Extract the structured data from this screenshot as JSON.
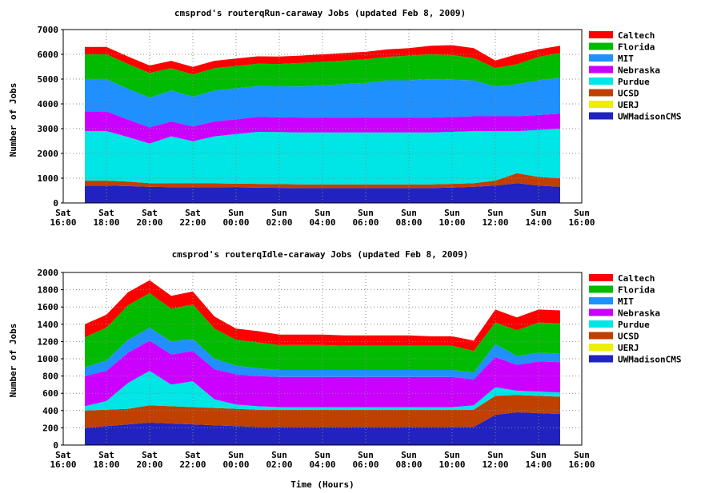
{
  "xlabel": "Time (Hours)",
  "ylabel": "Number of Jobs",
  "x_ticks": [
    {
      "day": "Sat",
      "time": "16:00"
    },
    {
      "day": "Sat",
      "time": "18:00"
    },
    {
      "day": "Sat",
      "time": "20:00"
    },
    {
      "day": "Sat",
      "time": "22:00"
    },
    {
      "day": "Sun",
      "time": "00:00"
    },
    {
      "day": "Sun",
      "time": "02:00"
    },
    {
      "day": "Sun",
      "time": "04:00"
    },
    {
      "day": "Sun",
      "time": "06:00"
    },
    {
      "day": "Sun",
      "time": "08:00"
    },
    {
      "day": "Sun",
      "time": "10:00"
    },
    {
      "day": "Sun",
      "time": "12:00"
    },
    {
      "day": "Sun",
      "time": "14:00"
    },
    {
      "day": "Sun",
      "time": "16:00"
    }
  ],
  "series_colors": {
    "Caltech": "#ff0000",
    "Florida": "#00bb00",
    "MIT": "#1e90ff",
    "Nebraska": "#cc00ff",
    "Purdue": "#00e5e5",
    "UCSD": "#c04000",
    "UERJ": "#eeee00",
    "UWMadisonCMS": "#2222c0"
  },
  "chart_data": [
    {
      "type": "area",
      "stacked": true,
      "title": "cmsprod's routerqRun-caraway Jobs (updated Feb 8, 2009)",
      "xlabel": "",
      "ylabel": "Number of Jobs",
      "ylim": [
        0,
        7000
      ],
      "y_ticks": [
        0,
        1000,
        2000,
        3000,
        4000,
        5000,
        6000,
        7000
      ],
      "grid": true,
      "legend": "right",
      "x_hours": [
        17,
        18,
        19,
        20,
        21,
        22,
        23,
        24,
        25,
        26,
        27,
        28,
        29,
        30,
        31,
        32,
        33,
        34,
        35,
        36,
        37,
        38,
        39
      ],
      "series": [
        {
          "name": "UWMadisonCMS",
          "values": [
            700,
            700,
            680,
            650,
            640,
            640,
            640,
            630,
            620,
            610,
            600,
            600,
            600,
            600,
            600,
            600,
            600,
            620,
            650,
            700,
            800,
            700,
            650
          ]
        },
        {
          "name": "UERJ",
          "values": [
            0,
            0,
            0,
            0,
            0,
            0,
            0,
            0,
            0,
            0,
            0,
            0,
            0,
            0,
            0,
            0,
            0,
            0,
            0,
            0,
            0,
            0,
            0
          ]
        },
        {
          "name": "UCSD",
          "values": [
            200,
            200,
            180,
            150,
            150,
            150,
            150,
            150,
            150,
            150,
            150,
            150,
            150,
            150,
            150,
            150,
            150,
            150,
            150,
            200,
            400,
            350,
            350
          ]
        },
        {
          "name": "Purdue",
          "values": [
            2000,
            2000,
            1800,
            1600,
            1900,
            1700,
            1900,
            2000,
            2100,
            2100,
            2100,
            2100,
            2100,
            2100,
            2100,
            2100,
            2100,
            2100,
            2100,
            2000,
            1700,
            1900,
            2000
          ]
        },
        {
          "name": "Nebraska",
          "values": [
            800,
            800,
            700,
            650,
            600,
            600,
            600,
            600,
            600,
            600,
            600,
            600,
            600,
            600,
            600,
            600,
            600,
            600,
            600,
            600,
            600,
            600,
            600
          ]
        },
        {
          "name": "MIT",
          "values": [
            1300,
            1300,
            1250,
            1200,
            1250,
            1200,
            1250,
            1250,
            1250,
            1250,
            1250,
            1300,
            1350,
            1400,
            1500,
            1500,
            1550,
            1500,
            1450,
            1200,
            1300,
            1400,
            1450
          ]
        },
        {
          "name": "Florida",
          "values": [
            1000,
            1000,
            1000,
            1000,
            900,
            900,
            900,
            900,
            900,
            900,
            950,
            950,
            950,
            950,
            950,
            1000,
            1000,
            1000,
            900,
            750,
            800,
            950,
            1000
          ]
        },
        {
          "name": "Caltech",
          "values": [
            300,
            300,
            300,
            300,
            300,
            300,
            300,
            300,
            300,
            300,
            300,
            300,
            300,
            300,
            300,
            300,
            350,
            400,
            400,
            300,
            400,
            300,
            300
          ]
        }
      ]
    },
    {
      "type": "area",
      "stacked": true,
      "title": "cmsprod's routerqIdle-caraway Jobs (updated Feb 8, 2009)",
      "xlabel": "Time (Hours)",
      "ylabel": "Number of Jobs",
      "ylim": [
        0,
        2000
      ],
      "y_ticks": [
        0,
        200,
        400,
        600,
        800,
        1000,
        1200,
        1400,
        1600,
        1800,
        2000
      ],
      "grid": true,
      "legend": "right",
      "x_hours": [
        17,
        18,
        19,
        20,
        21,
        22,
        23,
        24,
        25,
        26,
        27,
        28,
        29,
        30,
        31,
        32,
        33,
        34,
        35,
        36,
        37,
        38,
        39
      ],
      "series": [
        {
          "name": "UWMadisonCMS",
          "values": [
            200,
            220,
            240,
            260,
            250,
            240,
            230,
            220,
            210,
            210,
            210,
            210,
            210,
            210,
            210,
            210,
            210,
            210,
            210,
            350,
            380,
            370,
            360
          ]
        },
        {
          "name": "UERJ",
          "values": [
            0,
            0,
            0,
            0,
            0,
            0,
            0,
            0,
            0,
            0,
            0,
            0,
            0,
            0,
            0,
            0,
            0,
            0,
            0,
            0,
            0,
            0,
            0
          ]
        },
        {
          "name": "UCSD",
          "values": [
            200,
            190,
            180,
            200,
            200,
            200,
            200,
            200,
            200,
            200,
            200,
            200,
            200,
            200,
            200,
            200,
            200,
            200,
            200,
            220,
            200,
            200,
            200
          ]
        },
        {
          "name": "Purdue",
          "values": [
            50,
            100,
            300,
            400,
            250,
            300,
            100,
            50,
            40,
            30,
            30,
            30,
            30,
            30,
            30,
            30,
            30,
            30,
            50,
            100,
            50,
            50,
            50
          ]
        },
        {
          "name": "Nebraska",
          "values": [
            350,
            350,
            350,
            350,
            350,
            350,
            350,
            350,
            350,
            350,
            350,
            350,
            350,
            350,
            350,
            350,
            350,
            350,
            300,
            350,
            300,
            350,
            350
          ]
        },
        {
          "name": "MIT",
          "values": [
            100,
            120,
            150,
            150,
            150,
            140,
            120,
            100,
            90,
            80,
            80,
            80,
            80,
            80,
            80,
            80,
            80,
            80,
            80,
            150,
            100,
            100,
            100
          ]
        },
        {
          "name": "Florida",
          "values": [
            350,
            380,
            400,
            400,
            380,
            400,
            350,
            300,
            300,
            290,
            290,
            290,
            280,
            280,
            280,
            280,
            280,
            280,
            250,
            250,
            300,
            350,
            350
          ]
        },
        {
          "name": "Caltech",
          "values": [
            150,
            150,
            150,
            150,
            150,
            150,
            140,
            130,
            130,
            120,
            120,
            120,
            120,
            120,
            120,
            120,
            110,
            110,
            120,
            150,
            150,
            150,
            150
          ]
        }
      ]
    }
  ]
}
